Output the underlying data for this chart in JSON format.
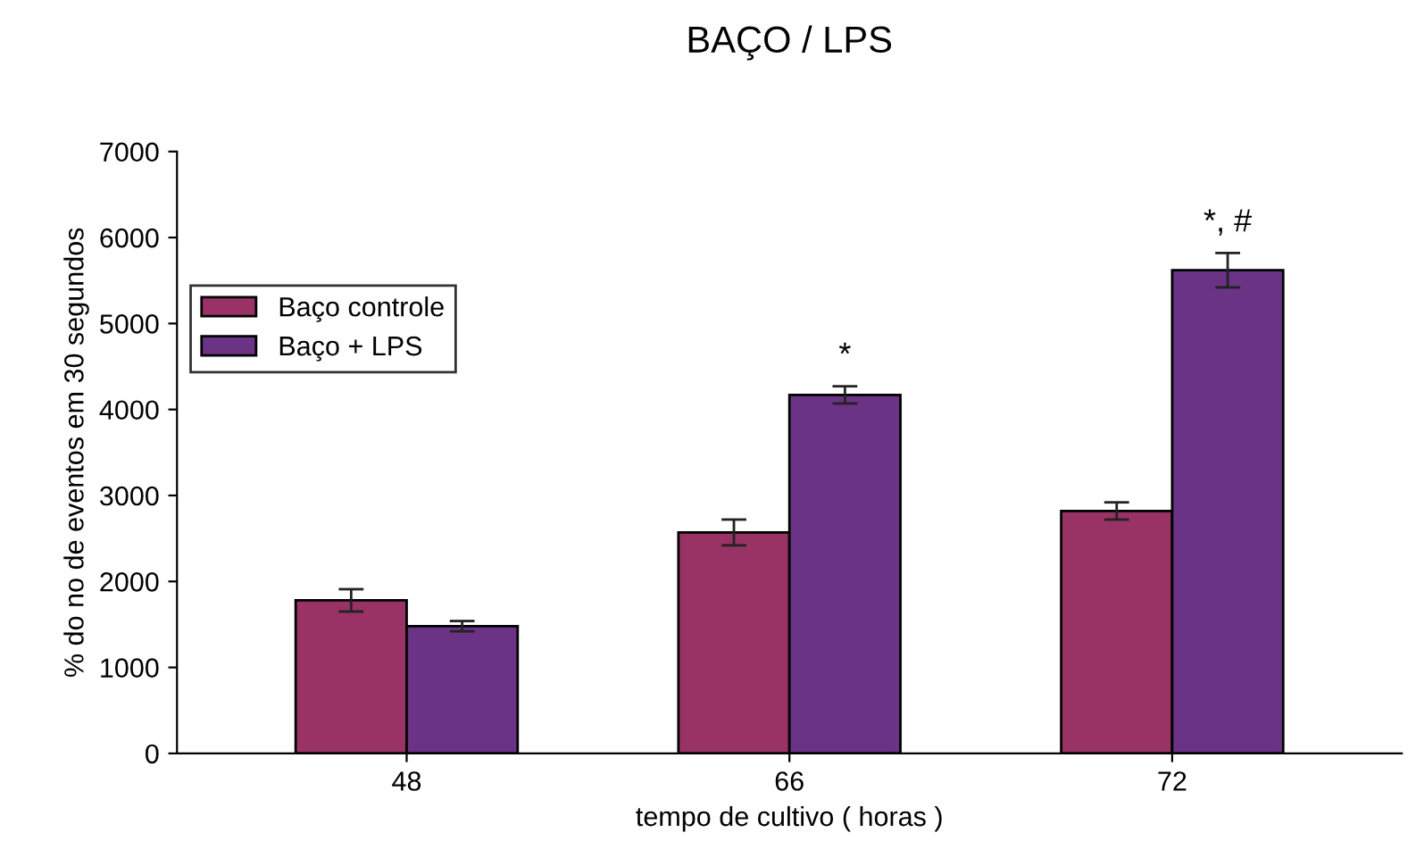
{
  "chart_data": {
    "type": "bar",
    "title": "BAÇO / LPS",
    "xlabel": "tempo de cultivo ( horas )",
    "ylabel": "% do no de eventos em 30 segundos",
    "categories": [
      "48",
      "66",
      "72"
    ],
    "series": [
      {
        "name": "Baço controle",
        "color": "#993366",
        "values": [
          1780,
          2570,
          2820
        ],
        "errors": [
          130,
          150,
          100
        ]
      },
      {
        "name": "Baço + LPS",
        "color": "#6a3385",
        "values": [
          1480,
          4170,
          5620
        ],
        "errors": [
          60,
          100,
          200
        ]
      }
    ],
    "ylim": [
      0,
      7000
    ],
    "yticks": [
      0,
      1000,
      2000,
      3000,
      4000,
      5000,
      6000,
      7000
    ],
    "grid": false,
    "legend": "top left",
    "annotations": [
      "*",
      "*, #"
    ]
  }
}
